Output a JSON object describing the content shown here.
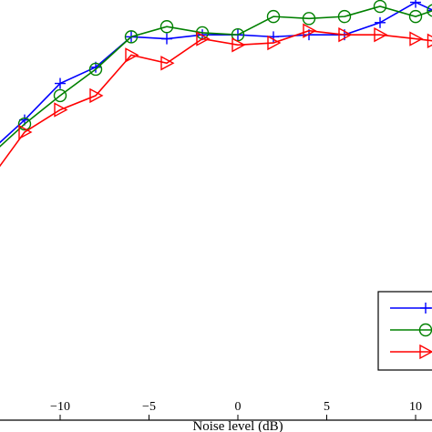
{
  "chart_data": {
    "type": "line",
    "xlabel": "Noise level (dB)",
    "ylabel": "",
    "title": "",
    "xlim": [
      -13,
      11
    ],
    "ylim": [
      0,
      1
    ],
    "x_ticks": [
      -10,
      -5,
      0,
      5,
      10
    ],
    "x_tick_labels": [
      "−10",
      "−5",
      "0",
      "5",
      "10"
    ],
    "grid": false,
    "legend": "bottom-right",
    "series": [
      {
        "color": "#0000ff",
        "marker": "plus",
        "x": [
          -14,
          -12,
          -10,
          -8,
          -6,
          -4,
          -2,
          0,
          2,
          4,
          6,
          8,
          10,
          11
        ],
        "y": [
          0.64,
          0.72,
          0.81,
          0.85,
          0.925,
          0.92,
          0.93,
          0.93,
          0.925,
          0.93,
          0.93,
          0.96,
          1.01,
          0.99
        ]
      },
      {
        "color": "#008000",
        "marker": "circle",
        "x": [
          -14,
          -12,
          -10,
          -8,
          -6,
          -4,
          -2,
          0,
          2,
          4,
          6,
          8,
          10,
          11
        ],
        "y": [
          0.63,
          0.71,
          0.78,
          0.845,
          0.925,
          0.95,
          0.935,
          0.93,
          0.975,
          0.97,
          0.975,
          1.0,
          0.975,
          0.99
        ]
      },
      {
        "color": "#ff0000",
        "marker": "triangle-right",
        "x": [
          -14,
          -12,
          -10,
          -8,
          -6,
          -4,
          -2,
          0,
          2,
          4,
          6,
          8,
          10,
          11
        ],
        "y": [
          0.57,
          0.69,
          0.745,
          0.78,
          0.88,
          0.86,
          0.92,
          0.905,
          0.91,
          0.94,
          0.93,
          0.93,
          0.92,
          0.915
        ]
      }
    ]
  }
}
